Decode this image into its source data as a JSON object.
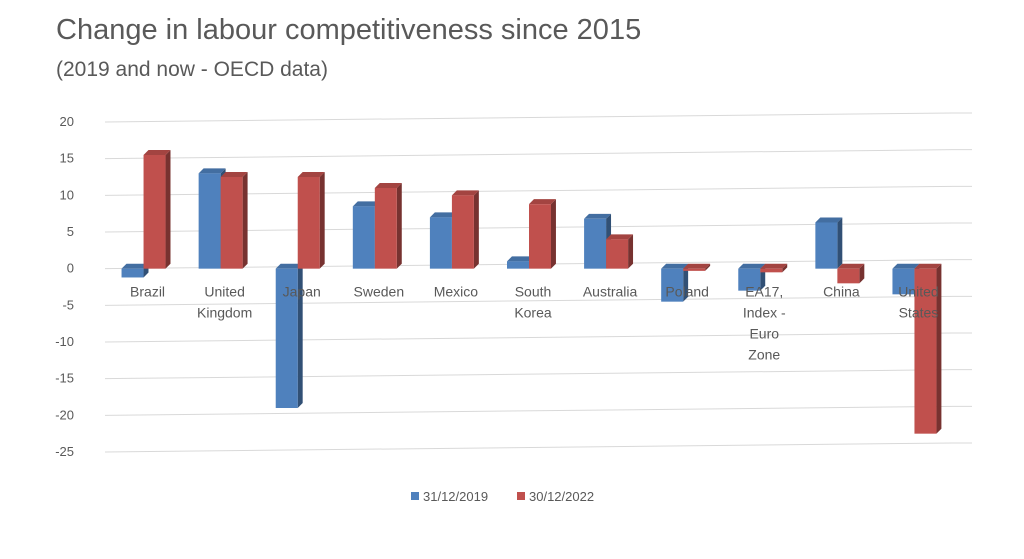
{
  "header": {
    "title": "Change in labour competitiveness since 2015",
    "subtitle": "(2019 and now - OECD data)"
  },
  "chart_data": {
    "type": "bar",
    "title": "Change in labour competitiveness since 2015",
    "subtitle": "(2019 and now - OECD data)",
    "xlabel": "",
    "ylabel": "",
    "ylim": [
      -25,
      20
    ],
    "yticks": [
      20,
      15,
      10,
      5,
      0,
      -5,
      -10,
      -15,
      -20,
      -25
    ],
    "grid": true,
    "legend_position": "bottom",
    "categories": [
      [
        "Brazil"
      ],
      [
        "United",
        "Kingdom"
      ],
      [
        "Japan"
      ],
      [
        "Sweden"
      ],
      [
        "Mexico"
      ],
      [
        "South",
        "Korea"
      ],
      [
        "Australia"
      ],
      [
        "Poland"
      ],
      [
        "EA17,",
        "Index -",
        "Euro",
        "Zone"
      ],
      [
        "China"
      ],
      [
        "United",
        "States"
      ]
    ],
    "series": [
      {
        "name": "31/12/2019",
        "color": "#4F81BD",
        "values": [
          -1.2,
          13,
          -19,
          8.5,
          7,
          1,
          6.8,
          -4.5,
          -3,
          6.3,
          -3.5
        ]
      },
      {
        "name": "30/12/2022",
        "color": "#C0504D",
        "values": [
          15.5,
          12.5,
          12.5,
          11,
          10,
          8.8,
          4,
          -0.3,
          -0.5,
          -2,
          -22.5
        ]
      }
    ]
  }
}
